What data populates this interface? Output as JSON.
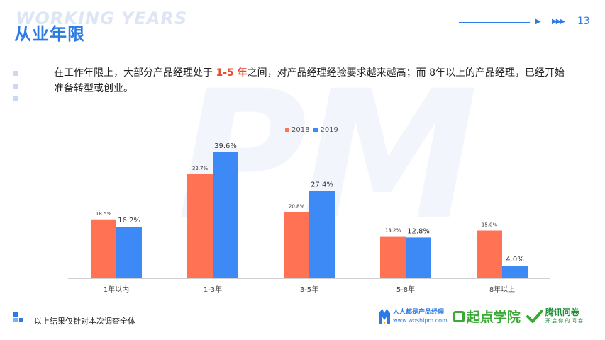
{
  "header": {
    "watermark": "WORKING YEARS",
    "title": "从业年限",
    "page_number": "13"
  },
  "description": {
    "part1": "在工作年限上，大部分产品经理处于 ",
    "highlight": "1-5 年",
    "part2": "之间，对产品经理经验要求越来越高；而 8年以上的产品经理，已经开始准备转型或创业。"
  },
  "background_watermark": "PM",
  "chart_data": {
    "type": "bar",
    "categories": [
      "1年以内",
      "1-3年",
      "3-5年",
      "5-8年",
      "8年以上"
    ],
    "series": [
      {
        "name": "2018",
        "color": "#ff7253",
        "values": [
          18.5,
          32.7,
          20.8,
          13.2,
          15.0
        ],
        "labels": [
          "18.5%",
          "32.7%",
          "20.8%",
          "13.2%",
          "15.0%"
        ]
      },
      {
        "name": "2019",
        "color": "#3d8af7",
        "values": [
          16.2,
          39.6,
          27.4,
          12.8,
          4.0
        ],
        "labels": [
          "16.2%",
          "39.6%",
          "27.4%",
          "12.8%",
          "4.0%"
        ]
      }
    ],
    "ylim": [
      0,
      44
    ],
    "legend": "top-center",
    "grid": false
  },
  "footer": {
    "note": "以上结果仅针对本次调查全体",
    "logos": {
      "woshipm_name": "人人都是产品经理",
      "woshipm_url": "www.woshipm.com",
      "qidian": "起点学院",
      "tencent": "腾讯问卷",
      "tencent_sub": "开 启 你 的 问 卷"
    }
  }
}
